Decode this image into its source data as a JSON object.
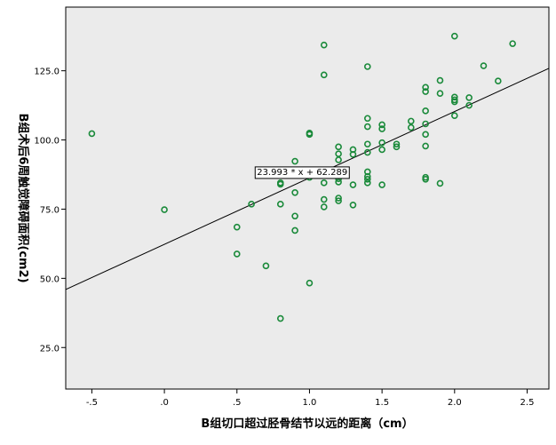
{
  "chart_data": {
    "type": "scatter",
    "xlabel": "B组切口超过胫骨结节以远的距离（cm）",
    "ylabel": "B组术后6周触觉障碍面积(cm2)",
    "xlim": [
      -0.68,
      2.65
    ],
    "ylim": [
      10,
      148
    ],
    "x_ticks": [
      -0.5,
      0.0,
      0.5,
      1.0,
      1.5,
      2.0,
      2.5
    ],
    "x_tick_labels": [
      "-.5",
      ".0",
      ".5",
      "1.0",
      "1.5",
      "2.0",
      "2.5"
    ],
    "y_ticks": [
      25,
      50,
      75,
      100,
      125
    ],
    "y_tick_labels": [
      "25.0",
      "50.0",
      "75.0",
      "100.0",
      "125.0"
    ],
    "grid": false,
    "fit_line": {
      "slope": 23.993,
      "intercept": 62.289,
      "label": "23.993 * x + 62.289",
      "label_at": [
        0.95,
        88.5
      ]
    },
    "colors": {
      "plot_bg": "#ebebeb",
      "marker": "#1a8a3a",
      "line": "#000000"
    },
    "points": [
      [
        -0.5,
        102.3
      ],
      [
        0.0,
        74.8
      ],
      [
        0.5,
        68.5
      ],
      [
        0.5,
        58.8
      ],
      [
        0.6,
        76.8
      ],
      [
        0.7,
        54.5
      ],
      [
        0.8,
        84.5
      ],
      [
        0.8,
        76.8
      ],
      [
        0.8,
        84.0
      ],
      [
        0.8,
        35.5
      ],
      [
        0.9,
        92.3
      ],
      [
        0.9,
        81.0
      ],
      [
        0.9,
        72.5
      ],
      [
        0.9,
        67.3
      ],
      [
        1.0,
        102.5
      ],
      [
        1.0,
        102.0
      ],
      [
        1.0,
        86.5
      ],
      [
        1.0,
        48.3
      ],
      [
        1.1,
        134.3
      ],
      [
        1.1,
        123.5
      ],
      [
        1.1,
        88.5
      ],
      [
        1.1,
        84.5
      ],
      [
        1.1,
        78.5
      ],
      [
        1.1,
        75.8
      ],
      [
        1.2,
        97.5
      ],
      [
        1.2,
        95.0
      ],
      [
        1.2,
        92.8
      ],
      [
        1.2,
        89.0
      ],
      [
        1.2,
        86.0
      ],
      [
        1.2,
        84.8
      ],
      [
        1.2,
        79.0
      ],
      [
        1.2,
        78.0
      ],
      [
        1.3,
        96.5
      ],
      [
        1.3,
        94.8
      ],
      [
        1.3,
        83.8
      ],
      [
        1.3,
        76.5
      ],
      [
        1.4,
        126.5
      ],
      [
        1.4,
        107.8
      ],
      [
        1.4,
        104.8
      ],
      [
        1.4,
        98.5
      ],
      [
        1.4,
        95.5
      ],
      [
        1.4,
        88.5
      ],
      [
        1.4,
        86.8
      ],
      [
        1.4,
        85.8
      ],
      [
        1.4,
        84.5
      ],
      [
        1.5,
        105.5
      ],
      [
        1.5,
        104.0
      ],
      [
        1.5,
        99.0
      ],
      [
        1.5,
        96.5
      ],
      [
        1.5,
        83.8
      ],
      [
        1.6,
        98.5
      ],
      [
        1.6,
        97.5
      ],
      [
        1.7,
        106.8
      ],
      [
        1.7,
        104.5
      ],
      [
        1.8,
        119.0
      ],
      [
        1.8,
        117.5
      ],
      [
        1.8,
        110.5
      ],
      [
        1.8,
        105.8
      ],
      [
        1.8,
        102.0
      ],
      [
        1.8,
        97.8
      ],
      [
        1.8,
        86.5
      ],
      [
        1.8,
        85.8
      ],
      [
        1.9,
        121.5
      ],
      [
        1.9,
        116.8
      ],
      [
        1.9,
        84.3
      ],
      [
        2.0,
        137.5
      ],
      [
        2.0,
        115.5
      ],
      [
        2.0,
        114.5
      ],
      [
        2.0,
        113.8
      ],
      [
        2.0,
        108.8
      ],
      [
        2.1,
        115.3
      ],
      [
        2.1,
        112.5
      ],
      [
        2.2,
        126.8
      ],
      [
        2.3,
        121.3
      ],
      [
        2.4,
        134.8
      ]
    ]
  }
}
